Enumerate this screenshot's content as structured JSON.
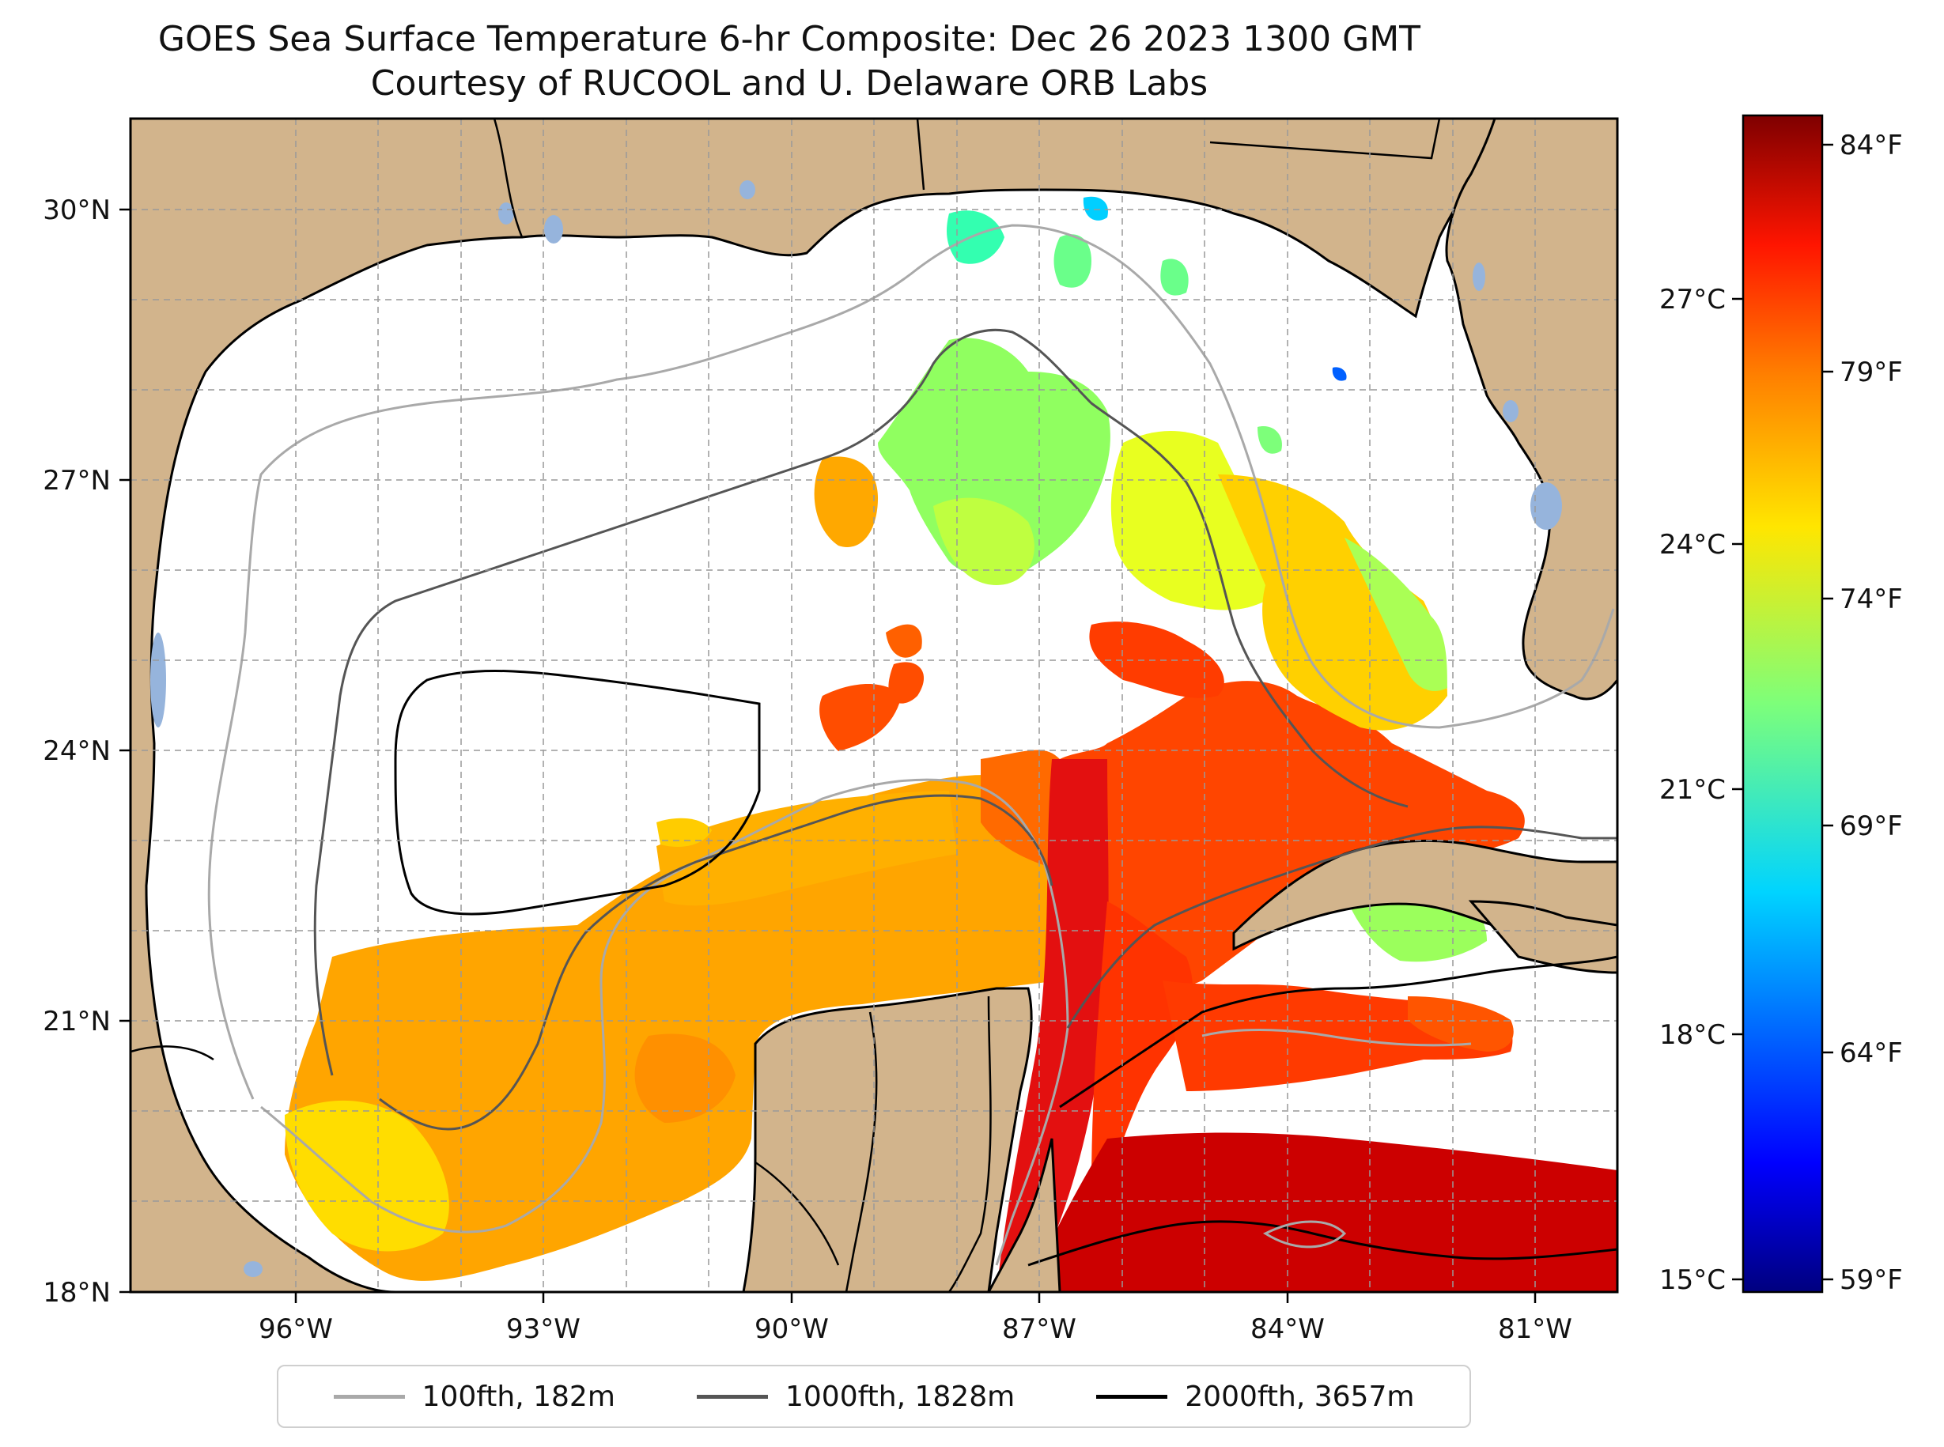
{
  "title": {
    "line1": "GOES Sea Surface Temperature 6-hr Composite: Dec 26 2023 1300 GMT",
    "line2": "Courtesy of RUCOOL and U. Delaware ORB Labs"
  },
  "map": {
    "lon_range": [
      -98,
      -80
    ],
    "lat_range": [
      18,
      31
    ],
    "lon_ticks": [
      "96°W",
      "93°W",
      "90°W",
      "87°W",
      "84°W",
      "81°W"
    ],
    "lat_ticks": [
      "18°N",
      "21°N",
      "24°N",
      "27°N",
      "30°N"
    ],
    "gridlines": "dashed",
    "colors": {
      "land": "#d2b48c",
      "water_no_data": "#ffffff",
      "lakes": "#96b4dc"
    }
  },
  "colorbar": {
    "colormap": "jet",
    "celsius_range": [
      15,
      29
    ],
    "celsius_ticks": [
      "15°C",
      "18°C",
      "21°C",
      "24°C",
      "27°C"
    ],
    "fahrenheit_ticks": [
      "59°F",
      "64°F",
      "69°F",
      "74°F",
      "79°F",
      "84°F"
    ]
  },
  "legend": {
    "items": [
      {
        "label": "100fth, 182m",
        "color": "#a9a9a9"
      },
      {
        "label": "1000fth, 1828m",
        "color": "#555555"
      },
      {
        "label": "2000fth, 3657m",
        "color": "#000000"
      }
    ]
  }
}
